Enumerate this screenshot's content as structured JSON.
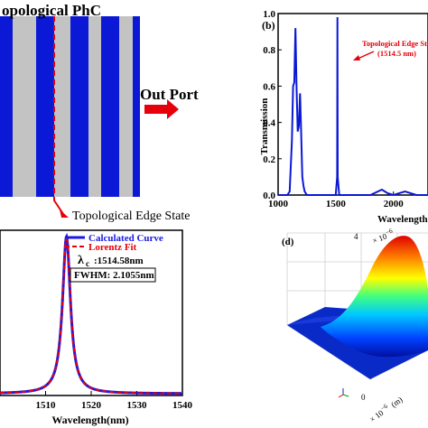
{
  "panel_a": {
    "title": "opological PhC",
    "out_port_label": "Out Port",
    "edge_state_label": "Topological Edge State",
    "colors": {
      "blue": "#0b19d6",
      "gray": "#c3c3c3",
      "arrow": "#e6000a"
    }
  },
  "panel_b": {
    "tag": "(b)",
    "annotation_line1": "Topological Edge State",
    "annotation_line2": "(1514.5 nm)",
    "ylabel": "Transmission",
    "xlabel": "Wavelength",
    "yticks": [
      "0.0",
      "0.2",
      "0.4",
      "0.6",
      "0.8",
      "1.0"
    ],
    "xticks": [
      "1000",
      "1500",
      "2000"
    ]
  },
  "panel_c": {
    "legend_calc": "Calculated Curve",
    "legend_fit": "Lorentz Fit",
    "lambda_symbol": "λ",
    "lambda_sub": "c",
    "lambda_value": ":1514.58nm",
    "fwhm": "FWHM: 2.1055nm",
    "xlabel": "Wavelength(nm)",
    "xticks": [
      "1510",
      "1520",
      "1530",
      "1540"
    ]
  },
  "panel_d": {
    "tag": "(d)",
    "top_label": "4",
    "scale_label": "× 10",
    "scale_exp": "−6",
    "axis_label": "× 10",
    "axis_exp": "−6",
    "axis_unit": "(m)",
    "zero_label": "0"
  },
  "chart_data": [
    {
      "type": "line",
      "panel": "b",
      "xlabel": "Wavelength",
      "ylabel": "Transmission",
      "xlim": [
        1000,
        2300
      ],
      "ylim": [
        0,
        1.0
      ],
      "series": [
        {
          "x": [
            1000,
            1080,
            1100,
            1120,
            1130,
            1140,
            1150,
            1160,
            1170,
            1180,
            1190,
            1200,
            1210,
            1220,
            1230,
            1250,
            1300,
            1400,
            1500,
            1512,
            1514.5,
            1517,
            1530,
            1600,
            1800,
            1900,
            1950,
            2000,
            2100,
            2200,
            2300
          ],
          "y": [
            0.0,
            0.0,
            0.02,
            0.3,
            0.6,
            0.62,
            0.92,
            0.6,
            0.35,
            0.38,
            0.56,
            0.35,
            0.1,
            0.05,
            0.02,
            0.0,
            0.0,
            0.0,
            0.0,
            0.1,
            0.98,
            0.1,
            0.0,
            0.0,
            0.0,
            0.03,
            0.01,
            0.0,
            0.02,
            0.0,
            0.0
          ]
        }
      ]
    },
    {
      "type": "line",
      "panel": "c",
      "xlabel": "Wavelength(nm)",
      "xlim": [
        1500,
        1540
      ],
      "series": [
        {
          "name": "Calculated Curve",
          "center": 1514.58,
          "fwhm": 2.1055
        },
        {
          "name": "Lorentz Fit",
          "center": 1514.58,
          "fwhm": 2.1055
        }
      ]
    }
  ]
}
